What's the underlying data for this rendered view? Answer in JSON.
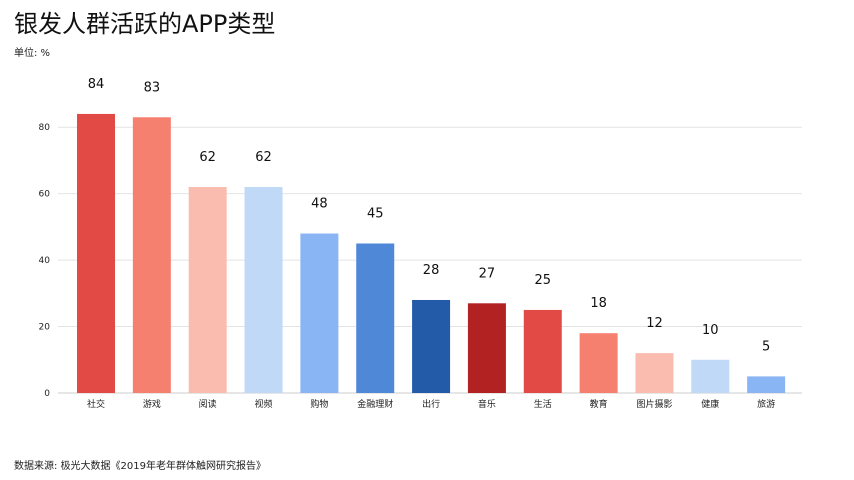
{
  "header": {
    "title": "银发人群活跃的APP类型",
    "unit": "单位: %"
  },
  "footer": {
    "source": "数据来源: 极光大数据《2019年老年群体触网研究报告》"
  },
  "chart_data": {
    "type": "bar",
    "title": "银发人群活跃的APP类型",
    "ylabel": "单位: %",
    "xlabel": "",
    "ylim": [
      0,
      90
    ],
    "yticks": [
      0,
      20,
      40,
      60,
      80
    ],
    "grid": true,
    "legend": "none",
    "categories": [
      "社交",
      "游戏",
      "阅读",
      "视频",
      "购物",
      "金融理财",
      "出行",
      "音乐",
      "生活",
      "教育",
      "图片摄影",
      "健康",
      "旅游"
    ],
    "values": [
      84,
      83,
      62,
      62,
      48,
      45,
      28,
      27,
      25,
      18,
      12,
      10,
      5
    ],
    "colors": [
      "#e24a46",
      "#f5806f",
      "#f9bcae",
      "#c0d9f7",
      "#8ab5f4",
      "#4f88d6",
      "#245ba9",
      "#b22222",
      "#e24a46",
      "#f5806f",
      "#f9bcae",
      "#c0d9f7",
      "#8ab5f4"
    ]
  }
}
